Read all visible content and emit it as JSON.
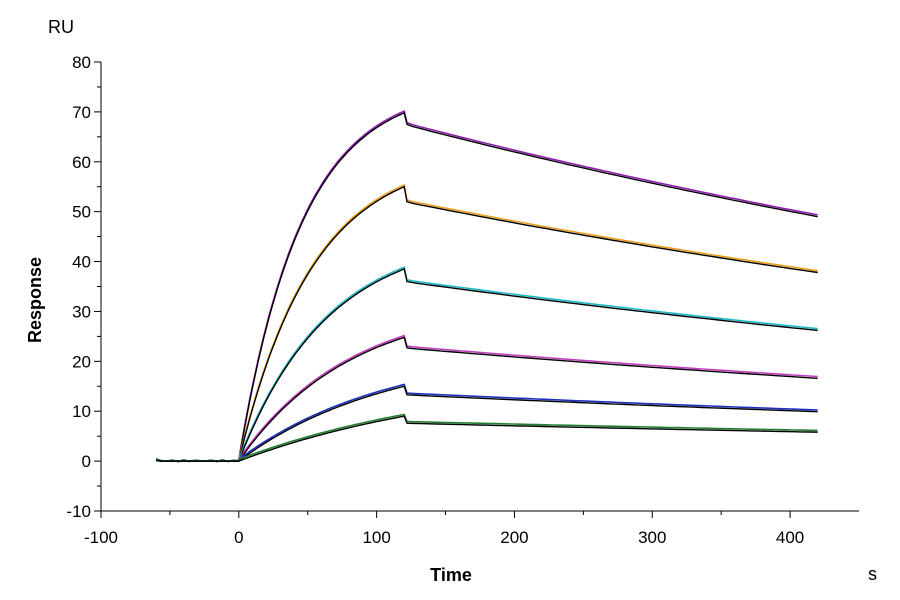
{
  "chart_data": {
    "type": "line",
    "title": "",
    "xlabel": "Time",
    "ylabel": "Response",
    "x_unit": "s",
    "y_unit": "RU",
    "xlim": [
      -100,
      450
    ],
    "ylim": [
      -10,
      80
    ],
    "x_ticks": [
      -100,
      0,
      100,
      200,
      300,
      400
    ],
    "y_ticks": [
      -10,
      0,
      10,
      20,
      30,
      40,
      50,
      60,
      70,
      80
    ],
    "x_tick_labels": [
      "-100",
      "0",
      "100",
      "200",
      "300",
      "400"
    ],
    "y_tick_labels": [
      "-10",
      "0",
      "10",
      "20",
      "30",
      "40",
      "50",
      "60",
      "70",
      "80"
    ],
    "grid": false,
    "legend": "none",
    "association_start": 0,
    "dissociation_start": 120,
    "x_end": 420,
    "baseline_start": -60,
    "fit_color": "#000000",
    "series": [
      {
        "color": "#8e1fb0",
        "peak": 69.8,
        "after_jump": 67.5,
        "end": 49.0
      },
      {
        "color": "#e8a020",
        "peak": 55.0,
        "after_jump": 52.0,
        "end": 37.8
      },
      {
        "color": "#20b8c8",
        "peak": 38.5,
        "after_jump": 36.0,
        "end": 26.2
      },
      {
        "color": "#c040c0",
        "peak": 24.8,
        "after_jump": 22.7,
        "end": 16.6
      },
      {
        "color": "#2030c0",
        "peak": 15.0,
        "after_jump": 13.3,
        "end": 9.9
      },
      {
        "color": "#208030",
        "peak": 9.0,
        "after_jump": 7.6,
        "end": 5.8
      }
    ]
  }
}
